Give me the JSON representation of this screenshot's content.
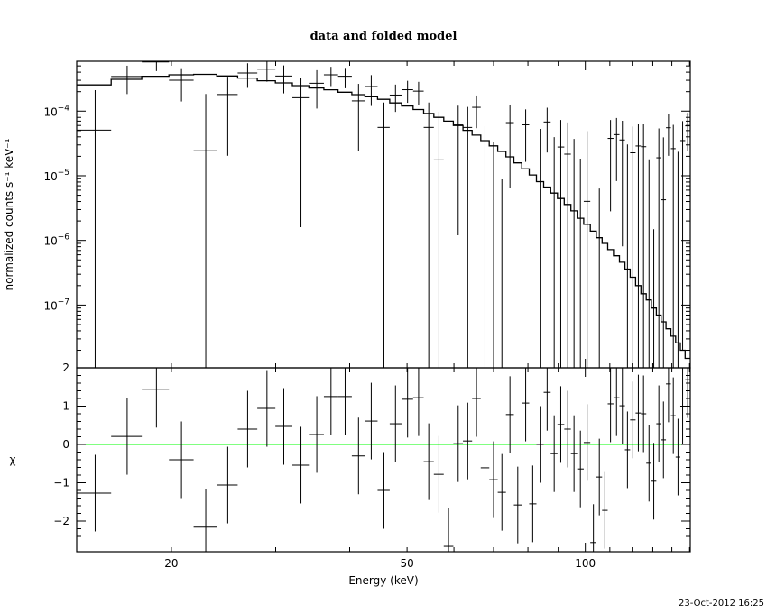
{
  "chart_data": {
    "type": "scatter",
    "title": "data and folded model",
    "timestamp": "23-Oct-2012 16:25",
    "xlabel": "Energy (keV)",
    "xscale": "log",
    "xlim": [
      13.84,
      150.4
    ],
    "xticks": [
      {
        "value": 20,
        "label": "20"
      },
      {
        "value": 50,
        "label": "50"
      },
      {
        "value": 100,
        "label": "100"
      }
    ],
    "panels": {
      "top": {
        "ylabel": "normalized counts s⁻¹ keV⁻¹",
        "yscale": "log",
        "ylim": [
          1.07e-08,
          0.00059
        ],
        "yticks": [
          {
            "value": 0.0001,
            "base": "10",
            "exp": "−4"
          },
          {
            "value": 1e-05,
            "base": "10",
            "exp": "−5"
          },
          {
            "value": 1e-06,
            "base": "10",
            "exp": "−6"
          },
          {
            "value": 1e-07,
            "base": "10",
            "exp": "−7"
          }
        ]
      },
      "bottom": {
        "ylabel": "χ",
        "ylim": [
          -2.8,
          2
        ],
        "yticks": [
          {
            "value": 2,
            "label": "2"
          },
          {
            "value": 1,
            "label": "1"
          },
          {
            "value": 0,
            "label": "0"
          },
          {
            "value": -1,
            "label": "−1"
          },
          {
            "value": -2,
            "label": "−2"
          }
        ],
        "zero_line_color": "#00ff00"
      }
    },
    "energy_keV": [
      14.87,
      16.84,
      18.87,
      20.8,
      22.86,
      24.9,
      26.9,
      29.0,
      30.96,
      33.1,
      35.2,
      37.2,
      39.3,
      41.4,
      43.5,
      45.7,
      47.8,
      50.1,
      52.3,
      54.4,
      56.6,
      58.75,
      61.0,
      63.3,
      65.5,
      67.7,
      70.0,
      72.3,
      74.6,
      76.9,
      79.3,
      81.5,
      83.9,
      86.2,
      88.6,
      90.9,
      93.4,
      95.7,
      98.1,
      100.7,
      103.2,
      105.6,
      107.9,
      110.3,
      112.9,
      115.5,
      117.8,
      120.3,
      122.9,
      125.4,
      128.1,
      130.5,
      133.1,
      135.5,
      138.2,
      140.8,
      143.4,
      146.0,
      148.9
    ],
    "model": [
      0.000254,
      0.00031,
      0.000346,
      0.000365,
      0.00037,
      0.00035,
      0.000325,
      0.000295,
      0.000273,
      0.000248,
      0.000228,
      0.000214,
      0.000196,
      0.00018,
      0.000167,
      0.000152,
      0.000134,
      0.00012,
      0.000106,
      9.2e-05,
      8e-05,
      7e-05,
      6e-05,
      5.05e-05,
      4.25e-05,
      3.5e-05,
      2.9e-05,
      2.38e-05,
      1.96e-05,
      1.58e-05,
      1.28e-05,
      1.03e-05,
      8.1e-06,
      6.7e-06,
      5.4e-06,
      4.45e-06,
      3.6e-06,
      2.87e-06,
      2.2e-06,
      1.77e-06,
      1.39e-06,
      1.1e-06,
      9e-07,
      7.2e-07,
      5.8e-07,
      4.6e-07,
      3.6e-07,
      2.7e-07,
      2e-07,
      1.5e-07,
      1.2e-07,
      9e-08,
      7e-08,
      5.5e-08,
      4.3e-08,
      3.3e-08,
      2.6e-08,
      2e-08,
      1.5e-08
    ],
    "rate_err": [
      0.00016,
      0.00016,
      0.00016,
      0.00016,
      0.00016,
      0.00016,
      0.00016,
      0.00016,
      0.00016,
      0.00016,
      0.00016,
      0.00012,
      0.00012,
      0.00012,
      0.00012,
      8e-05,
      8e-05,
      8e-05,
      8e-05,
      8e-05,
      8e-05,
      8e-05,
      6e-05,
      6e-05,
      6e-05,
      6e-05,
      6e-05,
      6e-05,
      6e-05,
      6e-05,
      4.5e-05,
      4.5e-05,
      4.5e-05,
      4.5e-05,
      4.5e-05,
      4.5e-05,
      4.5e-05,
      4.5e-05,
      4.5e-05,
      4.5e-05,
      3.5e-05,
      3.5e-05,
      3.5e-05,
      3.5e-05,
      3.5e-05,
      3.5e-05,
      3.5e-05,
      3.5e-05,
      3.5e-05,
      3.5e-05,
      3.5e-05,
      3.5e-05,
      3.5e-05,
      3.5e-05,
      3.5e-05,
      3.5e-05,
      3.5e-05,
      3.5e-05,
      3.5e-05
    ],
    "chi": [
      -1.27,
      0.21,
      1.44,
      -0.4,
      -2.16,
      -1.06,
      0.4,
      0.94,
      0.47,
      -0.54,
      0.26,
      1.25,
      1.25,
      -0.3,
      0.61,
      -1.2,
      0.54,
      1.18,
      1.22,
      -0.45,
      -0.78,
      -2.66,
      0.02,
      0.09,
      1.2,
      -0.61,
      -0.92,
      -1.25,
      0.78,
      -1.58,
      1.08,
      -1.55,
      0.0,
      1.36,
      -0.24,
      0.52,
      0.4,
      -0.24,
      -0.64,
      0.05,
      -2.56,
      -0.85,
      -1.72,
      1.06,
      1.22,
      1.01,
      -0.14,
      0.64,
      0.82,
      0.8,
      -0.49,
      -0.96,
      0.54,
      0.12,
      1.58,
      0.75,
      -0.33,
      1.0,
      1.69
    ],
    "chi_err": 1,
    "grid": false,
    "colors": {
      "data": "#000000",
      "model": "#000000",
      "zero_line": "#00ff00"
    }
  }
}
